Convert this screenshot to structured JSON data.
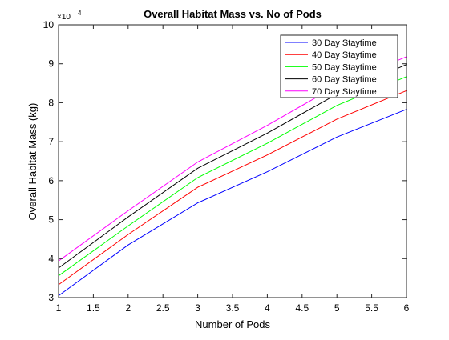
{
  "chart_data": {
    "type": "line",
    "title": "Overall Habitat Mass vs. No of Pods",
    "xlabel": "Number of Pods",
    "ylabel": "Overall Habitat Mass (kg)",
    "exponent_base": "×10",
    "exponent_power": "4",
    "xlim": [
      1,
      6
    ],
    "ylim": [
      3,
      10
    ],
    "y_scale_note": "values in units of 10^4 kg",
    "x_ticks": [
      "1",
      "1.5",
      "2",
      "2.5",
      "3",
      "3.5",
      "4",
      "4.5",
      "5",
      "5.5",
      "6"
    ],
    "y_ticks": [
      "3",
      "4",
      "5",
      "6",
      "7",
      "8",
      "9",
      "10"
    ],
    "grid": false,
    "legend_position": "top-right",
    "x": [
      1,
      2,
      3,
      4,
      5,
      6
    ],
    "series": [
      {
        "name": "30 Day Staytime",
        "color": "#0000ff",
        "values": [
          3.05,
          4.35,
          5.43,
          6.23,
          7.12,
          7.83
        ]
      },
      {
        "name": "40 Day Staytime",
        "color": "#ff0000",
        "values": [
          3.33,
          4.62,
          5.83,
          6.66,
          7.58,
          8.31
        ]
      },
      {
        "name": "50 Day Staytime",
        "color": "#00ff00",
        "values": [
          3.56,
          4.84,
          6.08,
          6.96,
          7.93,
          8.67
        ]
      },
      {
        "name": "60 Day Staytime",
        "color": "#000000",
        "values": [
          3.76,
          5.07,
          6.32,
          7.22,
          8.22,
          8.98
        ]
      },
      {
        "name": "70 Day Staytime",
        "color": "#ff00ff",
        "values": [
          3.94,
          5.23,
          6.48,
          7.42,
          8.44,
          9.18
        ]
      }
    ]
  }
}
